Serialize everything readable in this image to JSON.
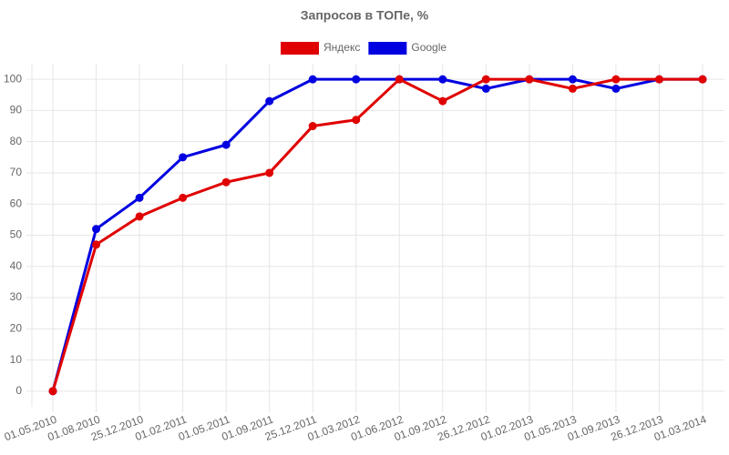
{
  "chart_data": {
    "type": "line",
    "title": "Запросов в ТОПе, %",
    "categories": [
      "01.05.2010",
      "01.08.2010",
      "25.12.2010",
      "01.02.2011",
      "01.05.2011",
      "01.09.2011",
      "25.12.2011",
      "01.03.2012",
      "01.06.2012",
      "01.09.2012",
      "26.12.2012",
      "01.02.2013",
      "01.05.2013",
      "01.09.2013",
      "26.12.2013",
      "01.03.2014"
    ],
    "series": [
      {
        "name": "Яндекс",
        "color": "#e00000",
        "values": [
          0,
          47,
          56,
          62,
          67,
          70,
          85,
          87,
          100,
          93,
          100,
          100,
          97,
          100,
          100,
          100
        ]
      },
      {
        "name": "Google",
        "color": "#0000e0",
        "values": [
          0,
          52,
          62,
          75,
          79,
          93,
          100,
          100,
          100,
          100,
          97,
          100,
          100,
          97,
          100,
          100
        ]
      }
    ],
    "ylim": [
      -5,
      105
    ],
    "yticks": [
      0,
      10,
      20,
      30,
      40,
      50,
      60,
      70,
      80,
      90,
      100
    ],
    "grid": true,
    "legend": "top"
  }
}
